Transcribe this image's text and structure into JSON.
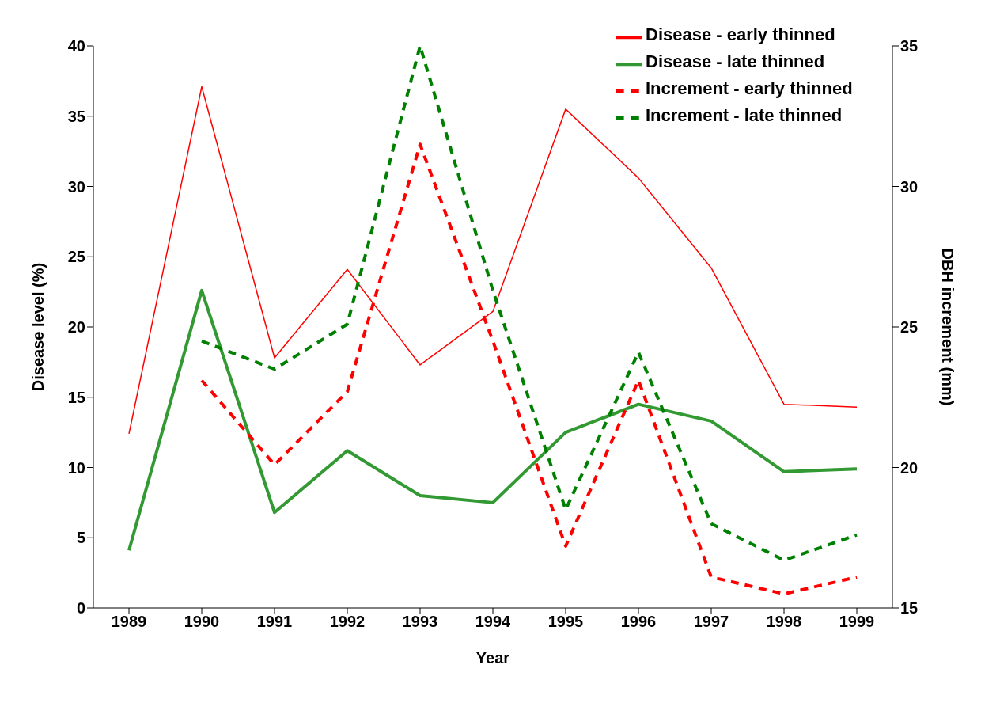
{
  "chart_data": {
    "type": "line",
    "xlabel": "Year",
    "ylabel": "Disease level (%)",
    "y2label": "DBH increment (mm)",
    "categories": [
      "1989",
      "1990",
      "1991",
      "1992",
      "1993",
      "1994",
      "1995",
      "1996",
      "1997",
      "1998",
      "1999"
    ],
    "series": [
      {
        "name": "Disease - early thinned",
        "color": "#ff0000",
        "line_style": "solid",
        "values": [
          12.4,
          37.1,
          17.8,
          24.1,
          17.3,
          21.1,
          35.5,
          30.6,
          24.2,
          14.5,
          14.3
        ]
      },
      {
        "name": "Disease - late thinned",
        "color": "#339933",
        "line_style": "solid",
        "values": [
          4.1,
          22.6,
          6.8,
          11.2,
          8.0,
          7.5,
          12.5,
          14.5,
          13.3,
          9.7,
          9.9
        ]
      },
      {
        "name": "Increment - early thinned",
        "color": "#ff0000",
        "line_style": "dashed",
        "axis": "y2",
        "values": [
          null,
          23.1,
          20.1,
          22.7,
          31.5,
          24.5,
          17.2,
          23.1,
          16.1,
          15.5,
          16.1
        ]
      },
      {
        "name": "Increment - late thinned",
        "color": "#008000",
        "line_style": "dashed",
        "axis": "y2",
        "values": [
          null,
          24.5,
          23.5,
          25.1,
          35.0,
          26.3,
          18.5,
          24.1,
          18.0,
          16.7,
          17.6
        ]
      }
    ],
    "ylim": [
      0,
      40
    ],
    "yticks": [
      0,
      5,
      10,
      15,
      20,
      25,
      30,
      35,
      40
    ],
    "y2lim": [
      15,
      35
    ],
    "y2ticks": [
      15,
      20,
      25,
      30,
      35
    ],
    "grid": false,
    "legend": "top right",
    "marker": "none"
  }
}
